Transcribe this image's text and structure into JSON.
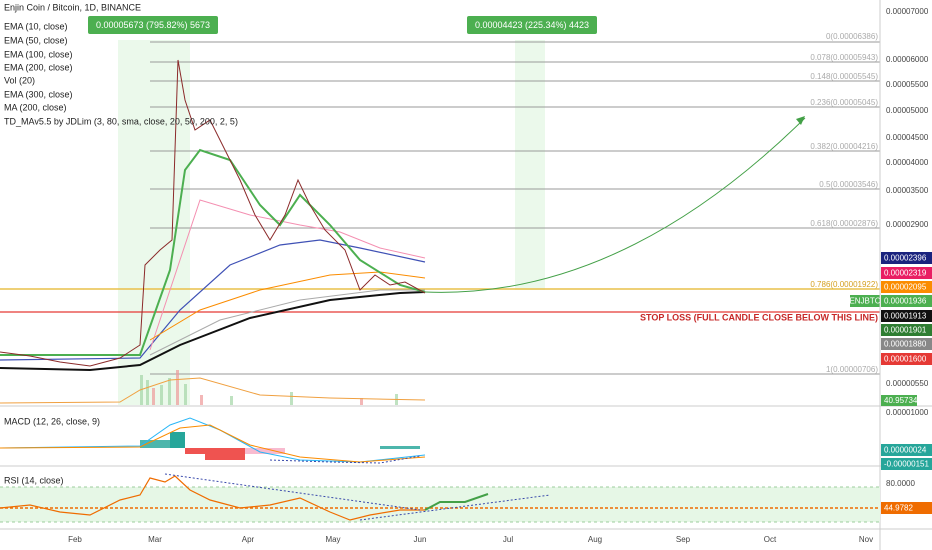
{
  "header": {
    "title": "Enjin Coin / Bitcoin, 1D, BINANCE",
    "indicators": [
      "EMA (10, close)",
      "EMA (50, close)",
      "EMA (100, close)",
      "EMA (200, close)",
      "Vol (20)",
      "EMA (300, close)",
      "MA (200, close)",
      "TD_MAv5.5 by JDLim (3, 80, sma, close, 20, 50, 200, 2, 5)"
    ]
  },
  "badges": [
    "0.00005673 (795.82%) 5673",
    "0.00004423 (225.34%) 4423"
  ],
  "fib_levels": [
    "0(0.00006386)",
    "0.078(0.00005943)",
    "0.148(0.00005545)",
    "0.236(0.00005045)",
    "0.382(0.00004216)",
    "0.5(0.00003546)",
    "0.618(0.00002876)",
    "0.786(0.00001922)",
    "1(0.00000706)"
  ],
  "stop_loss": "STOP LOSS (FULL CANDLE CLOSE BELOW THIS LINE)",
  "symbol_tag": "ENJBTC",
  "price_axis": [
    "0.00007000",
    "0.00006000",
    "0.00005500",
    "0.00005000",
    "0.00004500",
    "0.00004000",
    "0.00003500",
    "0.00002900",
    "0.00000550",
    "0.00001000",
    "80.0000"
  ],
  "price_labels": [
    "0.00002396",
    "0.00002319",
    "0.00002095",
    "0.00001936",
    "0.00001913",
    "0.00001901",
    "0.00001880",
    "0.00001600",
    "40.95734",
    "0.00000024",
    "-0.00000151",
    "44.9782"
  ],
  "macd": {
    "title": "MACD (12, 26, close, 9)"
  },
  "rsi": {
    "title": "RSI (14, close)"
  },
  "time_axis": [
    "Feb",
    "Mar",
    "Apr",
    "May",
    "Jun",
    "Jul",
    "Aug",
    "Sep",
    "Oct",
    "Nov"
  ]
}
